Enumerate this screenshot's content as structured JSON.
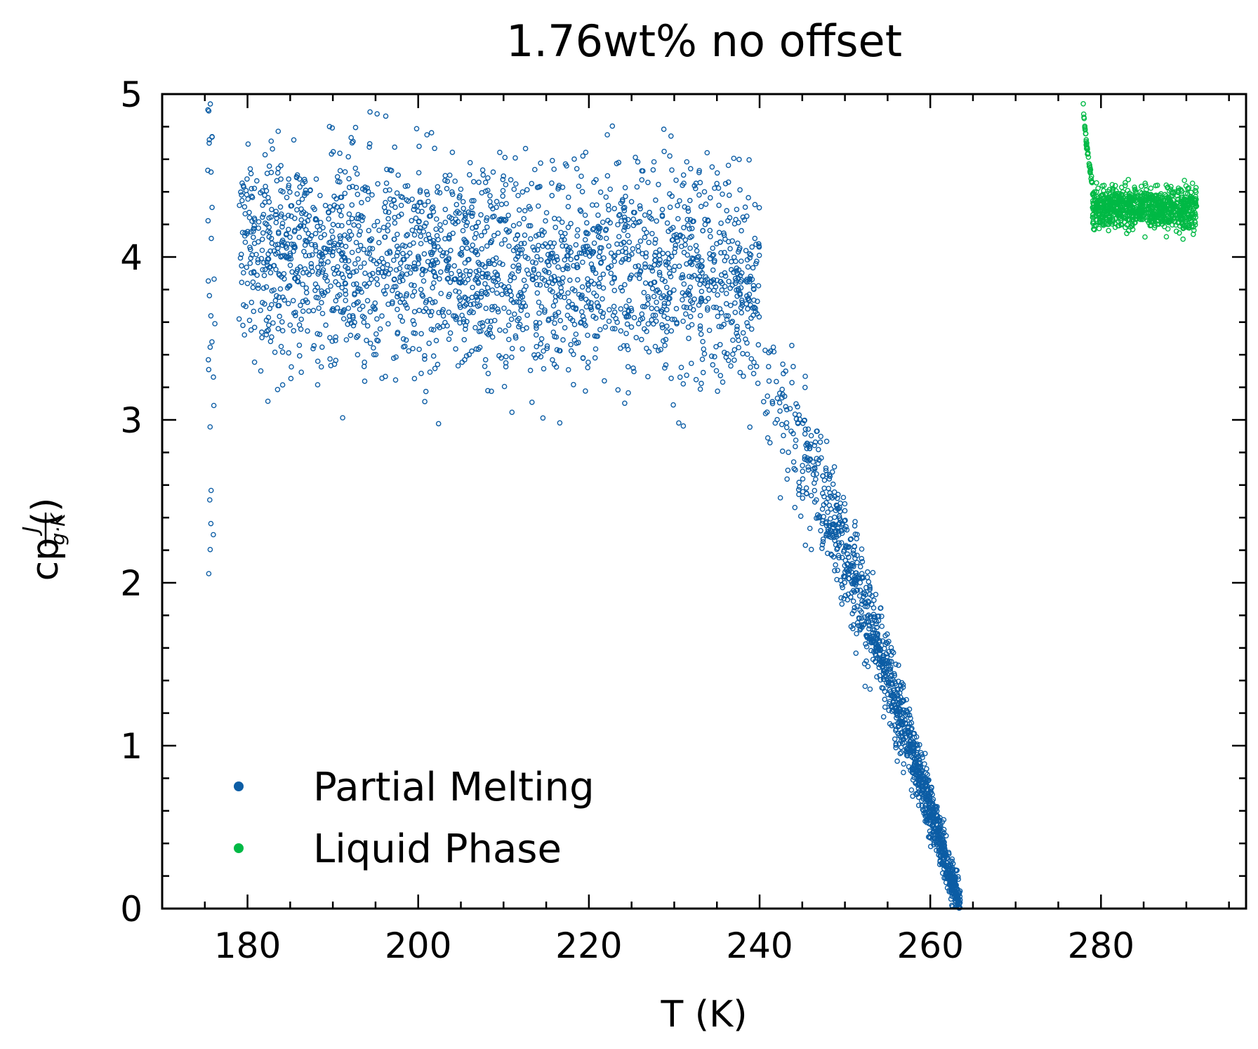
{
  "chart_data": {
    "type": "scatter",
    "title": "1.76wt% no offset",
    "xlabel": "T (K)",
    "ylabel": {
      "prefix": "cp (",
      "numerator": "J",
      "denominator": "g·K",
      "suffix": ")"
    },
    "xlim": [
      170,
      297
    ],
    "ylim": [
      0,
      5
    ],
    "xticks": [
      180,
      200,
      220,
      240,
      260,
      280
    ],
    "yticks": [
      0,
      1,
      2,
      3,
      4,
      5
    ],
    "grid": false,
    "legend_position": "bottom-left",
    "marker": "hollow-circle",
    "series": [
      {
        "name": "Partial Melting",
        "color": "#0c5da5",
        "segments": [
          {
            "x": [
              175.3,
              176.2
            ],
            "y": [
              2.05,
              4.95
            ],
            "profile": "vertical-column"
          },
          {
            "x": [
              179,
              240
            ],
            "y_center": [
              4.0,
              3.85
            ],
            "y_spread": [
              1.15,
              1.1
            ],
            "profile": "plateau"
          },
          {
            "x": [
              239,
              263.5
            ],
            "y_center": [
              3.35,
              0.0
            ],
            "y_spread": [
              0.9,
              0.2
            ],
            "profile": "decline"
          }
        ]
      },
      {
        "name": "Liquid Phase",
        "color": "#00b945",
        "segments": [
          {
            "x": [
              277.9,
              279.0
            ],
            "y": [
              5.0,
              4.45
            ],
            "profile": "drop"
          },
          {
            "x": [
              279,
              291.2
            ],
            "y_center": [
              4.3,
              4.3
            ],
            "y_spread": [
              0.22,
              0.22
            ],
            "profile": "plateau"
          }
        ]
      }
    ]
  }
}
